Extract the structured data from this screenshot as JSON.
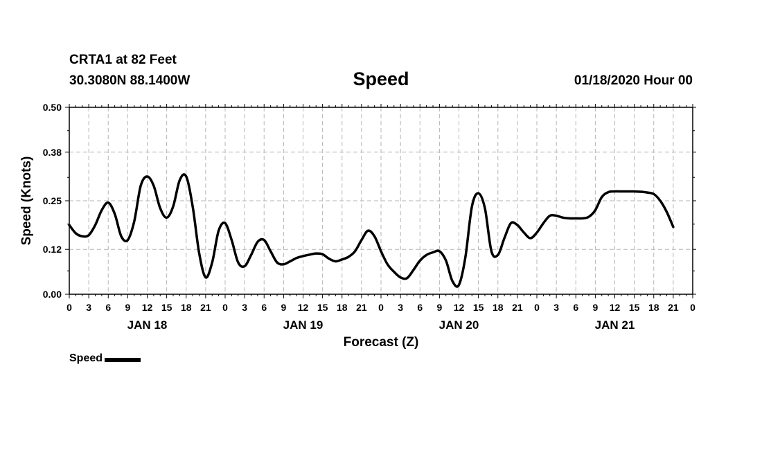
{
  "header": {
    "station": "CRTA1 at 82 Feet",
    "coords": "30.3080N 88.1400W",
    "title": "Speed",
    "issued": "01/18/2020 Hour 00"
  },
  "legend": {
    "label": "Speed"
  },
  "chart_data": {
    "type": "line",
    "title": "Speed",
    "xlabel": "Forecast (Z)",
    "ylabel": "Speed (Knots)",
    "ylim": [
      0,
      0.5
    ],
    "y_ticks": [
      "0.00",
      "0.12",
      "0.25",
      "0.38",
      "0.50"
    ],
    "x_range_hours": [
      0,
      96
    ],
    "x_tick_labels": [
      "0",
      "3",
      "6",
      "9",
      "12",
      "15",
      "18",
      "21",
      "0",
      "3",
      "6",
      "9",
      "12",
      "15",
      "18",
      "21",
      "0",
      "3",
      "6",
      "9",
      "12",
      "15",
      "18",
      "21",
      "0",
      "3",
      "6",
      "9",
      "12",
      "15",
      "18",
      "21",
      "0"
    ],
    "day_labels": [
      {
        "label": "JAN 18",
        "hour": 12
      },
      {
        "label": "JAN 19",
        "hour": 36
      },
      {
        "label": "JAN 20",
        "hour": 60
      },
      {
        "label": "JAN 21",
        "hour": 84
      }
    ],
    "grid": true,
    "series": [
      {
        "name": "Speed",
        "color": "#000000",
        "points": [
          [
            0,
            0.185
          ],
          [
            1,
            0.163
          ],
          [
            2,
            0.155
          ],
          [
            3,
            0.158
          ],
          [
            4,
            0.185
          ],
          [
            5,
            0.225
          ],
          [
            6,
            0.245
          ],
          [
            7,
            0.215
          ],
          [
            8,
            0.155
          ],
          [
            9,
            0.145
          ],
          [
            10,
            0.195
          ],
          [
            11,
            0.29
          ],
          [
            12,
            0.315
          ],
          [
            13,
            0.29
          ],
          [
            14,
            0.23
          ],
          [
            15,
            0.205
          ],
          [
            16,
            0.235
          ],
          [
            17,
            0.305
          ],
          [
            18,
            0.315
          ],
          [
            19,
            0.235
          ],
          [
            20,
            0.11
          ],
          [
            21,
            0.045
          ],
          [
            22,
            0.085
          ],
          [
            23,
            0.17
          ],
          [
            24,
            0.19
          ],
          [
            25,
            0.145
          ],
          [
            26,
            0.085
          ],
          [
            27,
            0.075
          ],
          [
            28,
            0.105
          ],
          [
            29,
            0.14
          ],
          [
            30,
            0.145
          ],
          [
            31,
            0.115
          ],
          [
            32,
            0.085
          ],
          [
            33,
            0.08
          ],
          [
            34,
            0.088
          ],
          [
            35,
            0.097
          ],
          [
            36,
            0.102
          ],
          [
            37,
            0.106
          ],
          [
            38,
            0.109
          ],
          [
            39,
            0.107
          ],
          [
            40,
            0.095
          ],
          [
            41,
            0.088
          ],
          [
            42,
            0.093
          ],
          [
            43,
            0.1
          ],
          [
            44,
            0.115
          ],
          [
            45,
            0.145
          ],
          [
            46,
            0.17
          ],
          [
            47,
            0.155
          ],
          [
            48,
            0.115
          ],
          [
            49,
            0.08
          ],
          [
            50,
            0.06
          ],
          [
            51,
            0.045
          ],
          [
            52,
            0.043
          ],
          [
            53,
            0.065
          ],
          [
            54,
            0.09
          ],
          [
            55,
            0.105
          ],
          [
            56,
            0.112
          ],
          [
            57,
            0.115
          ],
          [
            58,
            0.09
          ],
          [
            59,
            0.035
          ],
          [
            60,
            0.025
          ],
          [
            61,
            0.1
          ],
          [
            62,
            0.235
          ],
          [
            63,
            0.27
          ],
          [
            64,
            0.23
          ],
          [
            65,
            0.115
          ],
          [
            66,
            0.105
          ],
          [
            67,
            0.15
          ],
          [
            68,
            0.19
          ],
          [
            69,
            0.185
          ],
          [
            70,
            0.165
          ],
          [
            71,
            0.15
          ],
          [
            72,
            0.165
          ],
          [
            73,
            0.19
          ],
          [
            74,
            0.21
          ],
          [
            75,
            0.21
          ],
          [
            76,
            0.205
          ],
          [
            77,
            0.203
          ],
          [
            78,
            0.203
          ],
          [
            79,
            0.203
          ],
          [
            80,
            0.207
          ],
          [
            81,
            0.225
          ],
          [
            82,
            0.26
          ],
          [
            83,
            0.273
          ],
          [
            84,
            0.275
          ],
          [
            85,
            0.275
          ],
          [
            86,
            0.275
          ],
          [
            87,
            0.275
          ],
          [
            88,
            0.274
          ],
          [
            89,
            0.272
          ],
          [
            90,
            0.268
          ],
          [
            91,
            0.25
          ],
          [
            92,
            0.22
          ],
          [
            93,
            0.18
          ]
        ]
      }
    ]
  }
}
